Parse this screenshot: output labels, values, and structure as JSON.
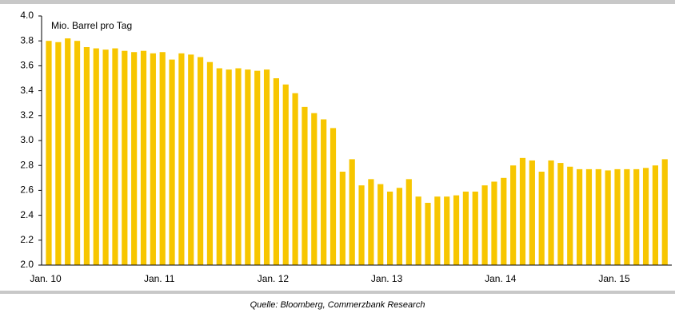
{
  "chart_data": {
    "type": "bar",
    "ylabel": "Mio. Barrel pro Tag",
    "source": "Quelle: Bloomberg, Commerzbank Research",
    "categories": [
      "Jan. 10",
      null,
      null,
      null,
      null,
      null,
      null,
      null,
      null,
      null,
      null,
      null,
      "Jan. 11",
      null,
      null,
      null,
      null,
      null,
      null,
      null,
      null,
      null,
      null,
      null,
      "Jan. 12",
      null,
      null,
      null,
      null,
      null,
      null,
      null,
      null,
      null,
      null,
      null,
      "Jan. 13",
      null,
      null,
      null,
      null,
      null,
      null,
      null,
      null,
      null,
      null,
      null,
      "Jan. 14",
      null,
      null,
      null,
      null,
      null,
      null,
      null,
      null,
      null,
      null,
      null,
      "Jan. 15",
      null,
      null,
      null,
      null,
      null
    ],
    "values": [
      3.8,
      3.79,
      3.82,
      3.8,
      3.75,
      3.74,
      3.73,
      3.74,
      3.72,
      3.71,
      3.72,
      3.7,
      3.71,
      3.65,
      3.7,
      3.69,
      3.67,
      3.63,
      3.58,
      3.57,
      3.58,
      3.57,
      3.56,
      3.57,
      3.5,
      3.45,
      3.38,
      3.27,
      3.22,
      3.17,
      3.1,
      2.75,
      2.85,
      2.64,
      2.69,
      2.65,
      2.59,
      2.62,
      2.69,
      2.55,
      2.5,
      2.55,
      2.55,
      2.56,
      2.59,
      2.59,
      2.64,
      2.67,
      2.7,
      2.8,
      2.86,
      2.84,
      2.75,
      2.84,
      2.82,
      2.79,
      2.77,
      2.77,
      2.77,
      2.76,
      2.77,
      2.77,
      2.77,
      2.78,
      2.8,
      2.85
    ],
    "color": "#f7c600",
    "ylim": [
      2.0,
      4.0
    ],
    "yticks": [
      {
        "value": 2,
        "label": "2.0"
      },
      2.2,
      2.4,
      2.6,
      2.8,
      {
        "value": 3,
        "label": "3.0"
      },
      3.2,
      3.4,
      3.6,
      3.8,
      {
        "value": 4,
        "label": "4.0"
      }
    ],
    "grid": false
  }
}
